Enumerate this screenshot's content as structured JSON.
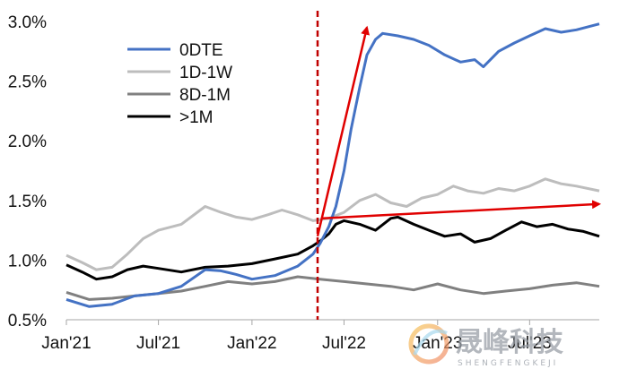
{
  "chart_data": {
    "type": "line",
    "title": "",
    "xlabel": "",
    "ylabel": "",
    "x_range": [
      "2021-01-01",
      "2023-11-15"
    ],
    "x_ticks": [
      {
        "date": "2021-01-01",
        "label": "Jan'21"
      },
      {
        "date": "2021-07-01",
        "label": "Jul'21"
      },
      {
        "date": "2022-01-01",
        "label": "Jan'22"
      },
      {
        "date": "2022-07-01",
        "label": "Jul'22"
      },
      {
        "date": "2023-01-01",
        "label": "Jan'23"
      },
      {
        "date": "2023-07-01",
        "label": "Jul'23"
      }
    ],
    "ylim": [
      0.5,
      3.0
    ],
    "y_ticks": [
      {
        "value": 0.5,
        "label": "0.5%"
      },
      {
        "value": 1.0,
        "label": "1.0%"
      },
      {
        "value": 1.5,
        "label": "1.5%"
      },
      {
        "value": 2.0,
        "label": "2.0%"
      },
      {
        "value": 2.5,
        "label": "2.5%"
      },
      {
        "value": 3.0,
        "label": "3.0%"
      }
    ],
    "grid": false,
    "legend_position": "top-left",
    "series": [
      {
        "name": "0DTE",
        "color": "#4472c4",
        "points": [
          [
            "2021-01-01",
            0.67
          ],
          [
            "2021-02-15",
            0.61
          ],
          [
            "2021-04-01",
            0.63
          ],
          [
            "2021-05-15",
            0.7
          ],
          [
            "2021-07-01",
            0.72
          ],
          [
            "2021-08-15",
            0.78
          ],
          [
            "2021-10-01",
            0.92
          ],
          [
            "2021-11-01",
            0.91
          ],
          [
            "2021-12-01",
            0.88
          ],
          [
            "2022-01-01",
            0.84
          ],
          [
            "2022-02-15",
            0.87
          ],
          [
            "2022-04-01",
            0.95
          ],
          [
            "2022-05-01",
            1.05
          ],
          [
            "2022-05-15",
            1.14
          ],
          [
            "2022-06-01",
            1.28
          ],
          [
            "2022-06-15",
            1.45
          ],
          [
            "2022-07-01",
            1.75
          ],
          [
            "2022-07-15",
            2.1
          ],
          [
            "2022-08-01",
            2.45
          ],
          [
            "2022-08-15",
            2.72
          ],
          [
            "2022-09-01",
            2.85
          ],
          [
            "2022-09-15",
            2.9
          ],
          [
            "2022-10-15",
            2.88
          ],
          [
            "2022-11-15",
            2.85
          ],
          [
            "2022-12-15",
            2.8
          ],
          [
            "2023-01-15",
            2.72
          ],
          [
            "2023-02-15",
            2.66
          ],
          [
            "2023-03-15",
            2.68
          ],
          [
            "2023-04-01",
            2.62
          ],
          [
            "2023-05-01",
            2.75
          ],
          [
            "2023-06-01",
            2.82
          ],
          [
            "2023-07-01",
            2.88
          ],
          [
            "2023-08-01",
            2.94
          ],
          [
            "2023-09-01",
            2.91
          ],
          [
            "2023-10-01",
            2.93
          ],
          [
            "2023-11-15",
            2.98
          ]
        ]
      },
      {
        "name": "1D-1W",
        "color": "#bdbdbd",
        "points": [
          [
            "2021-01-01",
            1.04
          ],
          [
            "2021-02-01",
            0.98
          ],
          [
            "2021-03-01",
            0.92
          ],
          [
            "2021-04-01",
            0.94
          ],
          [
            "2021-05-01",
            1.05
          ],
          [
            "2021-06-01",
            1.18
          ],
          [
            "2021-07-01",
            1.25
          ],
          [
            "2021-08-15",
            1.3
          ],
          [
            "2021-10-01",
            1.45
          ],
          [
            "2021-11-01",
            1.4
          ],
          [
            "2021-12-01",
            1.36
          ],
          [
            "2022-01-01",
            1.34
          ],
          [
            "2022-02-01",
            1.38
          ],
          [
            "2022-03-01",
            1.42
          ],
          [
            "2022-04-01",
            1.38
          ],
          [
            "2022-05-01",
            1.33
          ],
          [
            "2022-06-01",
            1.35
          ],
          [
            "2022-07-01",
            1.4
          ],
          [
            "2022-08-01",
            1.5
          ],
          [
            "2022-09-01",
            1.55
          ],
          [
            "2022-10-01",
            1.48
          ],
          [
            "2022-11-01",
            1.45
          ],
          [
            "2022-12-01",
            1.52
          ],
          [
            "2023-01-01",
            1.55
          ],
          [
            "2023-02-01",
            1.62
          ],
          [
            "2023-03-01",
            1.58
          ],
          [
            "2023-04-01",
            1.56
          ],
          [
            "2023-05-01",
            1.6
          ],
          [
            "2023-06-01",
            1.58
          ],
          [
            "2023-07-01",
            1.62
          ],
          [
            "2023-08-01",
            1.68
          ],
          [
            "2023-09-01",
            1.64
          ],
          [
            "2023-10-01",
            1.62
          ],
          [
            "2023-11-15",
            1.58
          ]
        ]
      },
      {
        "name": "8D-1M",
        "color": "#808080",
        "points": [
          [
            "2021-01-01",
            0.73
          ],
          [
            "2021-02-15",
            0.67
          ],
          [
            "2021-04-01",
            0.68
          ],
          [
            "2021-05-15",
            0.7
          ],
          [
            "2021-07-01",
            0.72
          ],
          [
            "2021-08-15",
            0.74
          ],
          [
            "2021-10-01",
            0.78
          ],
          [
            "2021-11-15",
            0.82
          ],
          [
            "2022-01-01",
            0.8
          ],
          [
            "2022-02-15",
            0.82
          ],
          [
            "2022-04-01",
            0.86
          ],
          [
            "2022-05-15",
            0.84
          ],
          [
            "2022-07-01",
            0.82
          ],
          [
            "2022-08-15",
            0.8
          ],
          [
            "2022-10-01",
            0.78
          ],
          [
            "2022-11-15",
            0.75
          ],
          [
            "2023-01-01",
            0.8
          ],
          [
            "2023-02-15",
            0.75
          ],
          [
            "2023-04-01",
            0.72
          ],
          [
            "2023-05-15",
            0.74
          ],
          [
            "2023-07-01",
            0.76
          ],
          [
            "2023-08-15",
            0.79
          ],
          [
            "2023-10-01",
            0.81
          ],
          [
            "2023-11-15",
            0.78
          ]
        ]
      },
      {
        "name": ">1M",
        "color": "#000000",
        "points": [
          [
            "2021-01-01",
            0.96
          ],
          [
            "2021-02-01",
            0.9
          ],
          [
            "2021-03-01",
            0.84
          ],
          [
            "2021-04-01",
            0.86
          ],
          [
            "2021-05-01",
            0.92
          ],
          [
            "2021-06-01",
            0.95
          ],
          [
            "2021-07-01",
            0.93
          ],
          [
            "2021-08-15",
            0.9
          ],
          [
            "2021-10-01",
            0.94
          ],
          [
            "2021-11-15",
            0.95
          ],
          [
            "2022-01-01",
            0.97
          ],
          [
            "2022-02-15",
            1.01
          ],
          [
            "2022-04-01",
            1.05
          ],
          [
            "2022-05-01",
            1.12
          ],
          [
            "2022-05-15",
            1.16
          ],
          [
            "2022-06-01",
            1.22
          ],
          [
            "2022-06-15",
            1.3
          ],
          [
            "2022-07-01",
            1.33
          ],
          [
            "2022-08-01",
            1.3
          ],
          [
            "2022-09-01",
            1.25
          ],
          [
            "2022-10-01",
            1.35
          ],
          [
            "2022-10-15",
            1.36
          ],
          [
            "2022-11-15",
            1.3
          ],
          [
            "2022-12-15",
            1.25
          ],
          [
            "2023-01-15",
            1.2
          ],
          [
            "2023-02-15",
            1.22
          ],
          [
            "2023-03-15",
            1.15
          ],
          [
            "2023-04-15",
            1.18
          ],
          [
            "2023-05-15",
            1.25
          ],
          [
            "2023-06-15",
            1.32
          ],
          [
            "2023-07-15",
            1.28
          ],
          [
            "2023-08-15",
            1.3
          ],
          [
            "2023-09-15",
            1.26
          ],
          [
            "2023-10-15",
            1.24
          ],
          [
            "2023-11-15",
            1.2
          ]
        ]
      }
    ],
    "annotations": [
      {
        "type": "vertical-dashed-line",
        "date": "2022-05-10",
        "color": "#c00000"
      },
      {
        "type": "arrow",
        "color": "#e00000",
        "from": [
          "2022-05-10",
          1.2
        ],
        "to": [
          "2022-08-15",
          2.95
        ]
      },
      {
        "type": "arrow",
        "color": "#e00000",
        "from": [
          "2022-05-20",
          1.35
        ],
        "to": [
          "2023-11-15",
          1.47
        ]
      }
    ]
  },
  "watermark": {
    "text_cn": "晟峰科技",
    "text_en": "SHENGFENGKEJI"
  }
}
